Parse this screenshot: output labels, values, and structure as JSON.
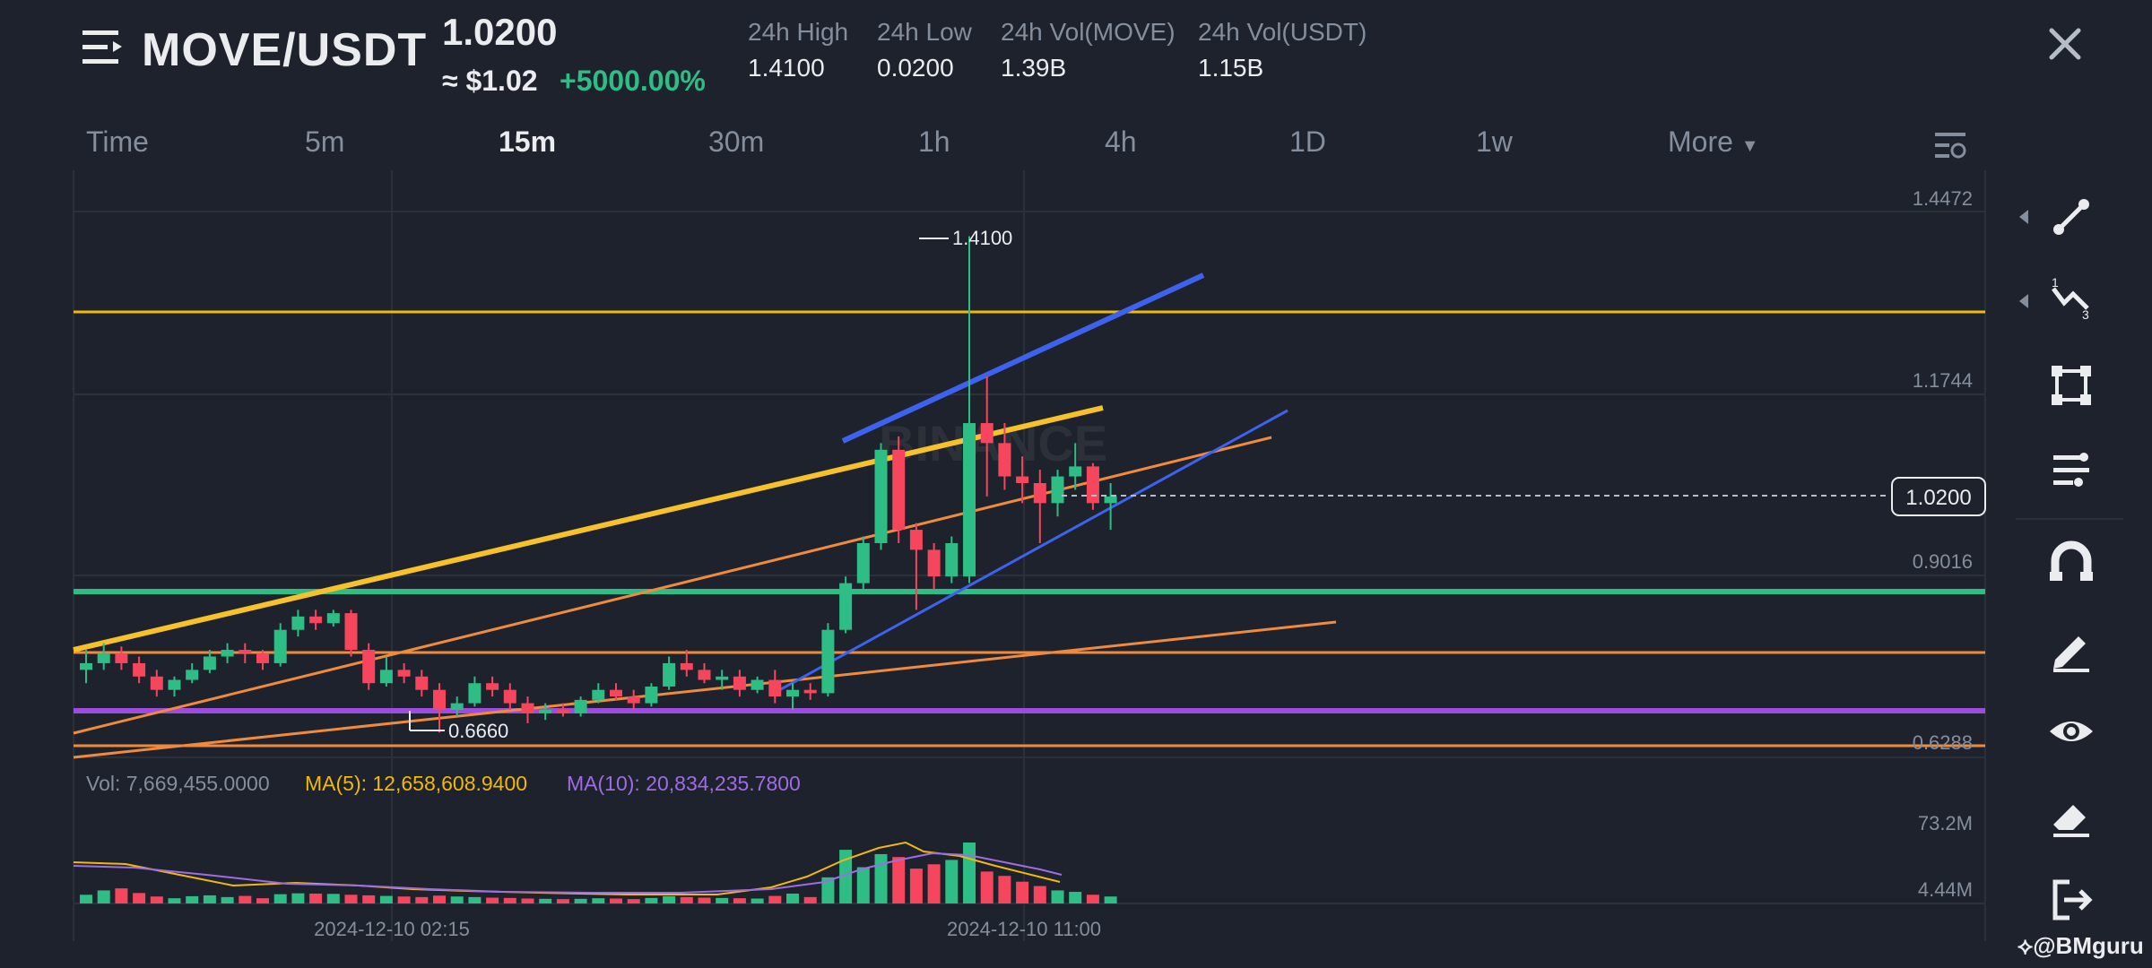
{
  "header": {
    "pair": "MOVE/USDT",
    "last_price": "1.0200",
    "usd_price": "≈ $1.02",
    "change_pct": "+5000.00%",
    "stats": [
      {
        "label": "24h High",
        "value": "1.4100"
      },
      {
        "label": "24h Low",
        "value": "0.0200"
      },
      {
        "label": "24h Vol(MOVE)",
        "value": "1.39B"
      },
      {
        "label": "24h Vol(USDT)",
        "value": "1.15B"
      }
    ]
  },
  "timeframes": {
    "items": [
      "Time",
      "5m",
      "15m",
      "30m",
      "1h",
      "4h",
      "1D",
      "1w"
    ],
    "active": "15m",
    "more_label": "More"
  },
  "chart_data": {
    "type": "candlestick",
    "price_axis_ticks": [
      "1.4472",
      "1.1744",
      "0.9016",
      "0.6288"
    ],
    "current_price_label": "1.0200",
    "high_marker": "1.4100",
    "low_marker": "0.6660",
    "time_labels": [
      "2024-12-10 02:15",
      "2024-12-10 11:00"
    ],
    "watermark": "BINANCE",
    "volume_axis_ticks": [
      "73.2M",
      "4.44M"
    ],
    "volume_legend": {
      "vol": "Vol: 7,669,455.0000",
      "ma5": "MA(5): 12,658,608.9400",
      "ma10": "MA(10): 20,834,235.7800"
    },
    "colors": {
      "up": "#2ebd85",
      "down": "#f6465d",
      "ma5": "#f0b90b",
      "ma10": "#9e6ce3",
      "grid": "#2b3139"
    },
    "candles": [
      [
        0.76,
        0.79,
        0.74,
        0.77
      ],
      [
        0.77,
        0.8,
        0.76,
        0.785
      ],
      [
        0.785,
        0.795,
        0.76,
        0.77
      ],
      [
        0.77,
        0.78,
        0.74,
        0.75
      ],
      [
        0.75,
        0.76,
        0.72,
        0.73
      ],
      [
        0.73,
        0.75,
        0.72,
        0.745
      ],
      [
        0.745,
        0.77,
        0.74,
        0.76
      ],
      [
        0.76,
        0.79,
        0.755,
        0.78
      ],
      [
        0.78,
        0.8,
        0.77,
        0.79
      ],
      [
        0.79,
        0.8,
        0.77,
        0.785
      ],
      [
        0.785,
        0.79,
        0.76,
        0.77
      ],
      [
        0.77,
        0.83,
        0.765,
        0.82
      ],
      [
        0.82,
        0.85,
        0.81,
        0.84
      ],
      [
        0.84,
        0.85,
        0.82,
        0.83
      ],
      [
        0.83,
        0.85,
        0.825,
        0.845
      ],
      [
        0.845,
        0.85,
        0.78,
        0.79
      ],
      [
        0.79,
        0.8,
        0.73,
        0.74
      ],
      [
        0.74,
        0.78,
        0.735,
        0.76
      ],
      [
        0.76,
        0.77,
        0.74,
        0.75
      ],
      [
        0.75,
        0.76,
        0.72,
        0.73
      ],
      [
        0.73,
        0.74,
        0.666,
        0.7
      ],
      [
        0.7,
        0.72,
        0.69,
        0.71
      ],
      [
        0.71,
        0.75,
        0.705,
        0.74
      ],
      [
        0.74,
        0.75,
        0.72,
        0.73
      ],
      [
        0.73,
        0.74,
        0.7,
        0.71
      ],
      [
        0.71,
        0.72,
        0.68,
        0.695
      ],
      [
        0.695,
        0.71,
        0.685,
        0.7
      ],
      [
        0.7,
        0.71,
        0.69,
        0.695
      ],
      [
        0.695,
        0.72,
        0.69,
        0.715
      ],
      [
        0.715,
        0.74,
        0.71,
        0.73
      ],
      [
        0.73,
        0.74,
        0.715,
        0.72
      ],
      [
        0.72,
        0.73,
        0.7,
        0.71
      ],
      [
        0.71,
        0.74,
        0.705,
        0.735
      ],
      [
        0.735,
        0.78,
        0.73,
        0.77
      ],
      [
        0.77,
        0.79,
        0.75,
        0.76
      ],
      [
        0.76,
        0.77,
        0.74,
        0.745
      ],
      [
        0.745,
        0.76,
        0.73,
        0.75
      ],
      [
        0.75,
        0.76,
        0.72,
        0.73
      ],
      [
        0.73,
        0.75,
        0.725,
        0.745
      ],
      [
        0.745,
        0.76,
        0.71,
        0.72
      ],
      [
        0.72,
        0.74,
        0.7,
        0.73
      ],
      [
        0.73,
        0.74,
        0.715,
        0.725
      ],
      [
        0.725,
        0.83,
        0.72,
        0.82
      ],
      [
        0.82,
        0.9,
        0.815,
        0.89
      ],
      [
        0.89,
        0.96,
        0.88,
        0.95
      ],
      [
        0.95,
        1.1,
        0.94,
        1.09
      ],
      [
        1.09,
        1.11,
        0.95,
        0.97
      ],
      [
        0.97,
        0.98,
        0.85,
        0.94
      ],
      [
        0.94,
        0.95,
        0.88,
        0.9
      ],
      [
        0.9,
        0.96,
        0.89,
        0.95
      ],
      [
        0.9,
        1.41,
        0.89,
        1.13
      ],
      [
        1.13,
        1.2,
        1.02,
        1.1
      ],
      [
        1.1,
        1.13,
        1.03,
        1.05
      ],
      [
        1.05,
        1.08,
        1.01,
        1.04
      ],
      [
        1.04,
        1.06,
        0.95,
        1.01
      ],
      [
        1.01,
        1.06,
        0.99,
        1.05
      ],
      [
        1.05,
        1.1,
        1.03,
        1.065
      ],
      [
        1.065,
        1.07,
        1.0,
        1.01
      ],
      [
        1.01,
        1.04,
        0.97,
        1.02
      ]
    ],
    "volumes": [
      3.0,
      4.5,
      5.2,
      3.6,
      2.4,
      1.8,
      2.5,
      2.8,
      2.2,
      2.6,
      1.8,
      3.2,
      3.5,
      3.4,
      3.3,
      3.0,
      2.8,
      2.6,
      2.4,
      2.2,
      2.7,
      2.4,
      2.2,
      2.0,
      1.9,
      1.7,
      1.6,
      1.5,
      1.6,
      1.8,
      1.7,
      1.5,
      1.9,
      2.5,
      2.2,
      2.0,
      1.9,
      1.8,
      1.7,
      2.6,
      3.4,
      2.2,
      9.0,
      18.5,
      12.5,
      17.0,
      16.0,
      12.0,
      13.5,
      15.0,
      21.0,
      11.0,
      9.5,
      7.5,
      6.0,
      4.5,
      4.0,
      3.0,
      2.4
    ]
  },
  "toolbar": {
    "tools": [
      "trend-line-icon",
      "fibonacci-icon",
      "rectangle-icon",
      "parallel-channel-icon",
      "magnet-icon",
      "brush-icon",
      "eye-icon",
      "eraser-icon",
      "exit-icon"
    ]
  },
  "watermark_handle": "@BMguru"
}
